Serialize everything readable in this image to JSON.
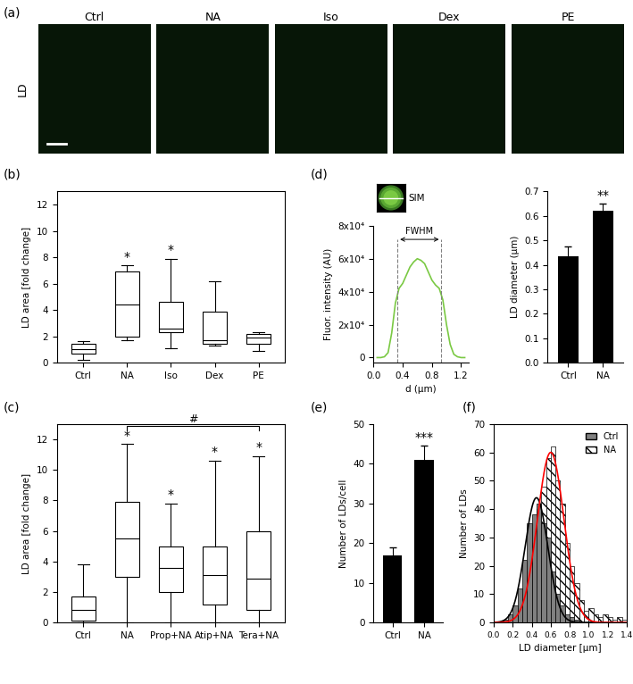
{
  "chart_data": [
    {
      "type": "image",
      "panel": "(a)",
      "row_label": "LD",
      "titles": [
        "Ctrl",
        "NA",
        "Iso",
        "Dex",
        "PE"
      ]
    },
    {
      "type": "box",
      "panel": "(b)",
      "ylabel": "LD area [fold change]",
      "categories": [
        "Ctrl",
        "NA",
        "Iso",
        "Dex",
        "PE"
      ],
      "whisker_low": [
        0.2,
        1.7,
        1.1,
        1.3,
        0.9
      ],
      "q1": [
        0.7,
        2.0,
        2.3,
        1.4,
        1.4
      ],
      "median": [
        1.0,
        4.4,
        2.6,
        1.7,
        1.9
      ],
      "q3": [
        1.4,
        6.9,
        4.6,
        3.9,
        2.2
      ],
      "whisker_high": [
        1.6,
        7.4,
        7.9,
        6.2,
        2.3
      ],
      "significance": [
        null,
        "*",
        "*",
        null,
        null
      ],
      "ylim": [
        0,
        13
      ],
      "yticks": [
        0,
        2,
        4,
        6,
        8,
        10,
        12
      ]
    },
    {
      "type": "box",
      "panel": "(c)",
      "ylabel": "LD area [fold change]",
      "categories": [
        "Ctrl",
        "NA",
        "Prop+NA",
        "Atip+NA",
        "Tera+NA"
      ],
      "whisker_low": [
        0,
        0,
        0,
        0,
        0
      ],
      "q1": [
        0.1,
        3.0,
        2.0,
        1.2,
        0.8
      ],
      "median": [
        0.8,
        5.5,
        3.6,
        3.1,
        2.9
      ],
      "q3": [
        1.7,
        7.9,
        5.0,
        5.0,
        6.0
      ],
      "whisker_high": [
        3.8,
        11.7,
        7.8,
        10.6,
        10.9
      ],
      "significance": [
        null,
        "*",
        "*",
        "*",
        "*"
      ],
      "bracket": {
        "from": "NA",
        "to": "Tera+NA",
        "label": "#"
      },
      "ylim": [
        0,
        13
      ],
      "yticks": [
        0,
        2,
        4,
        6,
        8,
        10,
        12
      ]
    },
    {
      "type": "line",
      "panel": "(d)",
      "inset_label": "SIM",
      "xlabel": "d (µm)",
      "ylabel": "Fluor. intensity (AU)",
      "color": "#7ac943",
      "x": [
        0.05,
        0.1,
        0.15,
        0.2,
        0.25,
        0.3,
        0.35,
        0.4,
        0.45,
        0.5,
        0.55,
        0.6,
        0.65,
        0.7,
        0.75,
        0.8,
        0.85,
        0.9,
        0.95,
        1.0,
        1.05,
        1.1,
        1.15,
        1.2,
        1.25
      ],
      "values": [
        0,
        0,
        500,
        3000,
        15000,
        33000,
        42000,
        45000,
        50000,
        55000,
        58000,
        60000,
        59000,
        57000,
        52000,
        47000,
        44000,
        42000,
        35000,
        20000,
        8000,
        2000,
        500,
        0,
        0
      ],
      "annotation": {
        "label": "FWHM",
        "x": [
          0.33,
          0.93
        ]
      },
      "xlim": [
        0,
        1.3
      ],
      "ylim": [
        -3000,
        80000
      ],
      "xticks": [
        0.0,
        0.4,
        0.8,
        1.2
      ],
      "yticks": [
        0,
        {
          "value": 20000,
          "label": "2x10⁴"
        },
        {
          "value": 40000,
          "label": "4x10⁴"
        },
        {
          "value": 60000,
          "label": "6x10⁴"
        },
        {
          "value": 80000,
          "label": "8x10⁴"
        }
      ]
    },
    {
      "type": "bar",
      "ylabel": "LD diameter (µm)",
      "categories": [
        "Ctrl",
        "NA"
      ],
      "values": [
        0.435,
        0.62
      ],
      "errors": [
        0.04,
        0.03
      ],
      "significance": [
        null,
        "**"
      ],
      "color": "#000000",
      "ylim": [
        0,
        0.7
      ],
      "yticks": [
        0.0,
        0.1,
        0.2,
        0.3,
        0.4,
        0.5,
        0.6,
        0.7
      ]
    },
    {
      "type": "bar",
      "panel": "(e)",
      "ylabel": "Number of LDs/cell",
      "categories": [
        "Ctrl",
        "NA"
      ],
      "values": [
        17,
        41
      ],
      "errors": [
        2,
        3.5
      ],
      "significance": [
        null,
        "***"
      ],
      "color": "#000000",
      "ylim": [
        0,
        50
      ],
      "yticks": [
        0,
        10,
        20,
        30,
        40,
        50
      ]
    },
    {
      "type": "histogram",
      "panel": "(f)",
      "xlabel": "LD diameter [µm]",
      "ylabel": "Number of LDs",
      "bins": [
        0.1,
        0.15,
        0.2,
        0.25,
        0.3,
        0.35,
        0.4,
        0.45,
        0.5,
        0.55,
        0.6,
        0.65,
        0.7,
        0.75,
        0.8,
        0.85,
        0.9,
        0.95,
        1.0,
        1.05,
        1.1,
        1.15,
        1.2,
        1.25,
        1.3,
        1.35,
        1.4
      ],
      "series": [
        {
          "name": "Ctrl",
          "color": "#808080",
          "values": [
            1,
            3,
            6,
            12,
            22,
            35,
            38,
            42,
            35,
            30,
            18,
            10,
            6,
            3,
            2,
            1,
            0,
            0,
            0,
            0,
            0,
            0,
            0,
            0,
            0,
            0
          ],
          "fit": {
            "peak": 44,
            "center": 0.45,
            "sigma": 0.12,
            "color": "#000000"
          }
        },
        {
          "name": "NA",
          "color": "#ffffff",
          "values": [
            0,
            1,
            2,
            5,
            10,
            18,
            28,
            40,
            48,
            58,
            62,
            50,
            42,
            28,
            20,
            14,
            8,
            4,
            5,
            3,
            2,
            3,
            2,
            1,
            2,
            1
          ],
          "fit": {
            "peak": 60,
            "center": 0.6,
            "sigma": 0.14,
            "color": "#ff0000"
          }
        }
      ],
      "legend": "upper right",
      "xlim": [
        0,
        1.4
      ],
      "ylim": [
        0,
        70
      ],
      "xticks": [
        0.0,
        0.2,
        0.4,
        0.6,
        0.8,
        1.0,
        1.2,
        1.4
      ],
      "yticks": [
        0,
        10,
        20,
        30,
        40,
        50,
        60,
        70
      ]
    }
  ]
}
